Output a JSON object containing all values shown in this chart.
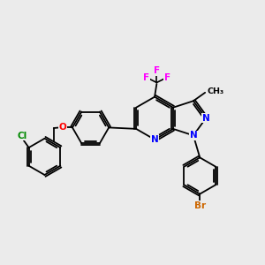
{
  "bg": "#ebebeb",
  "bond_color": "#000000",
  "atom_colors": {
    "N": "#0000ff",
    "O": "#ff0000",
    "F": "#ff00ff",
    "Cl": "#008800",
    "Br": "#cc6600",
    "C": "#000000"
  },
  "figsize": [
    3.0,
    3.0
  ],
  "dpi": 100
}
